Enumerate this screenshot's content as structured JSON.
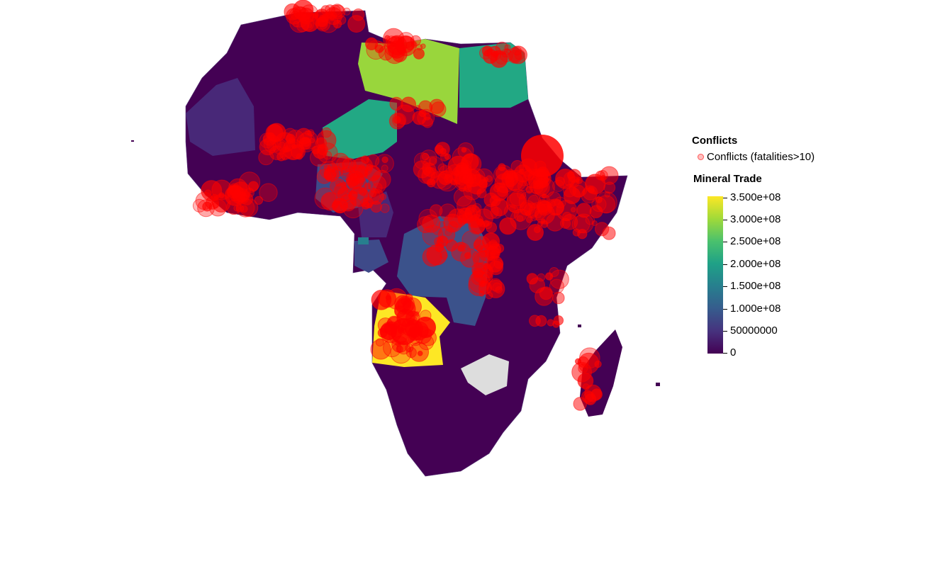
{
  "legend": {
    "conflicts_title": "Conflicts",
    "conflicts_entry": "Conflicts (fatalities>10)",
    "mineral_title": "Mineral Trade",
    "ticks": [
      "3.500e+08",
      "3.000e+08",
      "2.500e+08",
      "2.000e+08",
      "1.500e+08",
      "1.000e+08",
      "50000000",
      "0"
    ]
  },
  "colors": {
    "conflict": "#ff0000",
    "no_data": "#dddddd",
    "low": "#440154",
    "high": "#fde725"
  }
}
